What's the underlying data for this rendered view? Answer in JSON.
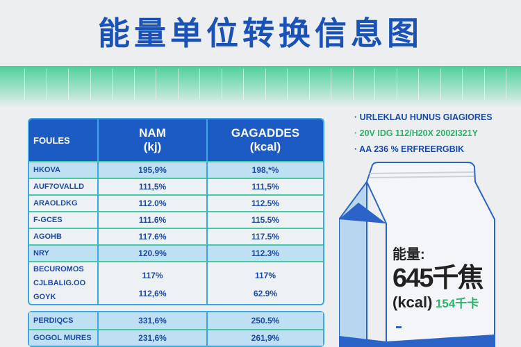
{
  "title": "能量单位转换信息图",
  "table": {
    "headers": [
      "FOULES",
      "NAM\n(kj)",
      "GAGADDES\n(kcal)"
    ],
    "rows": [
      {
        "label": "HKOVA",
        "kj": "195,9%",
        "kcal": "198,*%",
        "highlight": true
      },
      {
        "label": "AUF7OVALLD",
        "kj": "111,5%",
        "kcal": "111,5%",
        "highlight": false
      },
      {
        "label": "ARAOLDKG",
        "kj": "112.0%",
        "kcal": "112.5%",
        "highlight": false
      },
      {
        "label": "F-GCES",
        "kj": "111.6%",
        "kcal": "115.5%",
        "highlight": false
      },
      {
        "label": "AGOHB",
        "kj": "117.6%",
        "kcal": "117.5%",
        "highlight": false
      },
      {
        "label": "NRY",
        "kj": "120.9%",
        "kcal": "112.3%",
        "highlight": true
      }
    ],
    "multi_row": {
      "label": [
        "BECUROMOS",
        "CJLBALIG.OO",
        "GOYK"
      ],
      "kj": [
        "117%",
        "112,6%"
      ],
      "kcal": [
        "117%",
        "62.9%"
      ]
    }
  },
  "table2": {
    "rows": [
      {
        "label": "PERDIQCS",
        "kj": "331,6%",
        "kcal": "250.5%"
      },
      {
        "label": "GOGOL MURES",
        "kj": "231,6%",
        "kcal": "261,9%"
      }
    ]
  },
  "bullets": [
    {
      "text": "URLEKLAU HUNUS GIAGIORES",
      "color": "#1a4aa8"
    },
    {
      "text": "20V IDG 112/H20X 2002I321Y",
      "color": "#2bb36a"
    },
    {
      "text": "AA  236  % ERFREERGBIK",
      "color": "#1a4aa8"
    }
  ],
  "carton": {
    "label": "能量:",
    "value": "645千焦",
    "unit": "(kcal)",
    "kcal_value": "154千卡"
  },
  "colors": {
    "primary": "#1d5bc4",
    "accent": "#2bb36a"
  }
}
